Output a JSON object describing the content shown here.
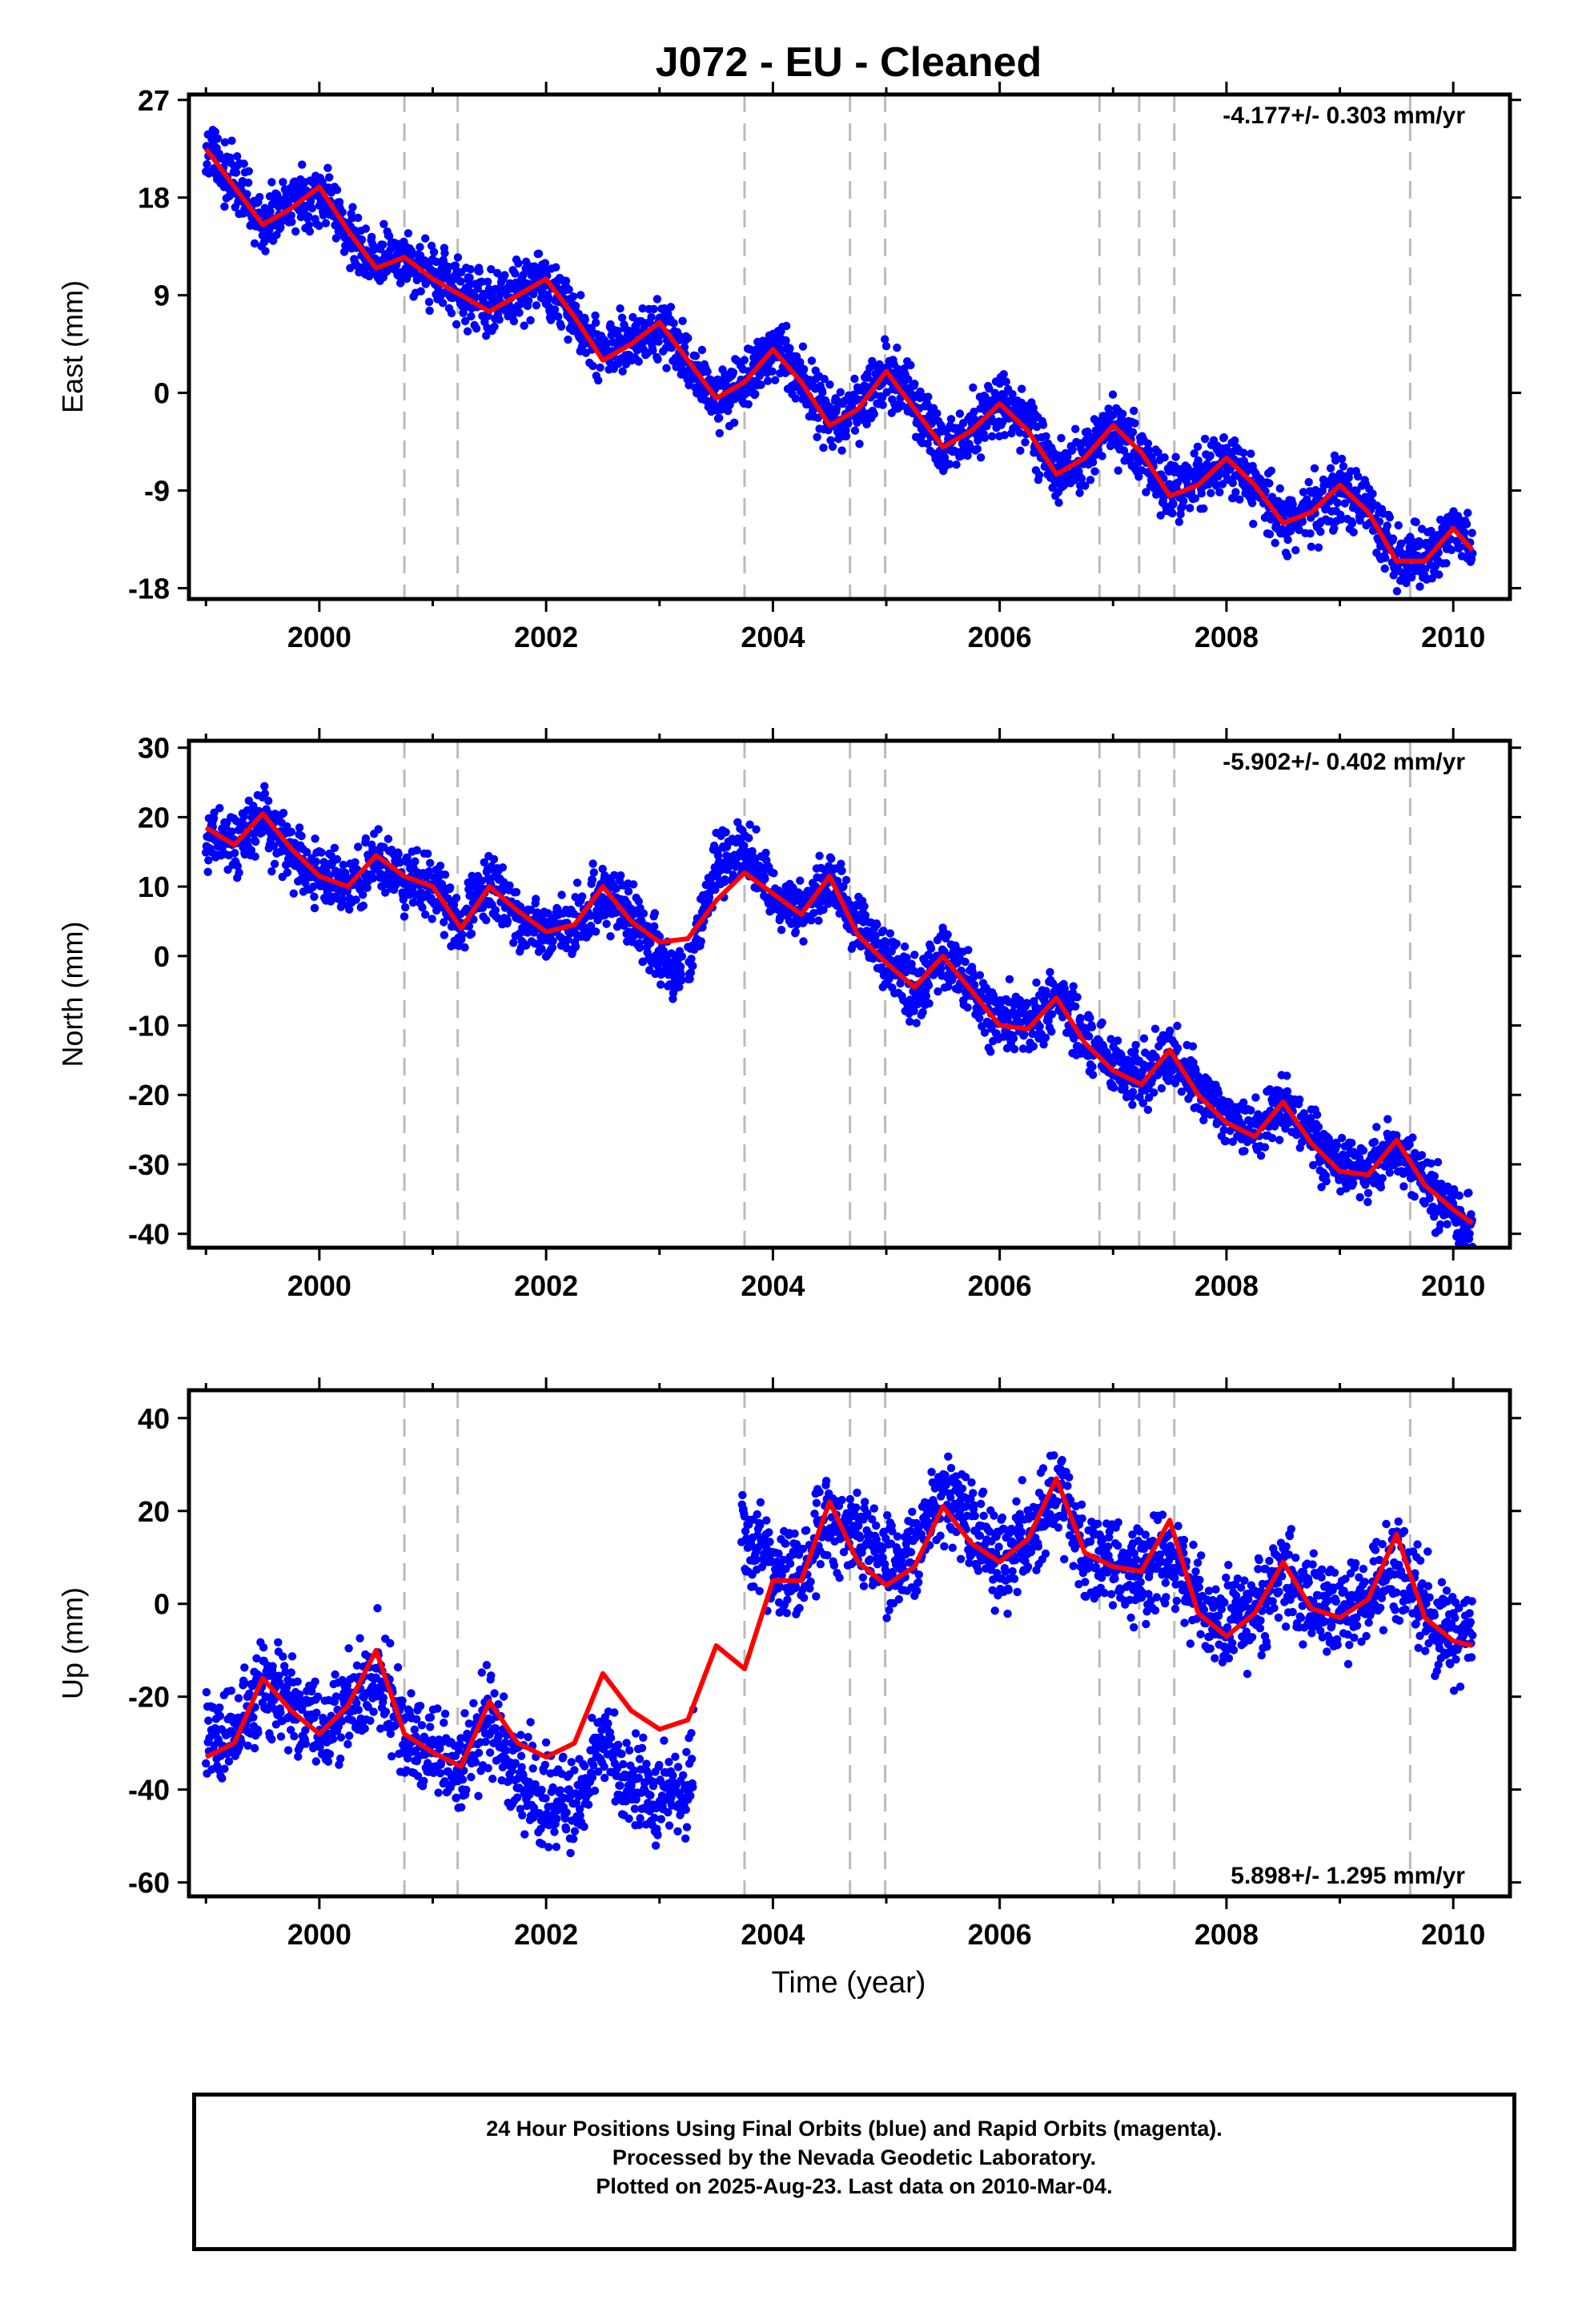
{
  "title": "J072  - EU - Cleaned",
  "xlabel": "Time (year)",
  "caption": [
    "24 Hour Positions Using Final Orbits (blue) and Rapid Orbits (magenta).",
    "Processed by the Nevada Geodetic Laboratory.",
    "Plotted on 2025-Aug-23. Last data on 2010-Mar-04."
  ],
  "colors": {
    "observations": "#0000ff",
    "model": "#ff0000",
    "event_lines": "#bbbbbb",
    "frame": "#000000"
  },
  "chart_data": [
    {
      "type": "scatter",
      "ylabel": "East (mm)",
      "rate_label": "-4.177+/- 0.303 mm/yr",
      "rate_position": "top-right",
      "xlim": [
        1998.85,
        2010.5
      ],
      "ylim": [
        -19,
        27.5
      ],
      "xticks": [
        2000,
        2002,
        2004,
        2006,
        2008,
        2010
      ],
      "yticks": [
        27,
        18,
        9,
        0,
        -9,
        -18
      ],
      "grid": false,
      "events": [
        2000.75,
        2001.22,
        2003.75,
        2004.68,
        2004.99,
        2006.88,
        2007.23,
        2007.54,
        2009.62
      ],
      "series": [
        {
          "kind": "observations",
          "x": [
            1999.0,
            1999.25,
            1999.5,
            1999.75,
            2000.0,
            2000.25,
            2000.5,
            2000.75,
            2001.0,
            2001.25,
            2001.5,
            2001.75,
            2002.0,
            2002.25,
            2002.5,
            2002.75,
            2003.0,
            2003.25,
            2003.5,
            2003.75,
            2004.0,
            2004.25,
            2004.5,
            2004.75,
            2005.0,
            2005.25,
            2005.5,
            2005.75,
            2006.0,
            2006.25,
            2006.5,
            2006.75,
            2007.0,
            2007.25,
            2007.5,
            2007.75,
            2008.0,
            2008.25,
            2008.5,
            2008.75,
            2009.0,
            2009.25,
            2009.5,
            2009.75,
            2010.0,
            2010.17
          ],
          "y": [
            22.5,
            19.5,
            15.5,
            17.5,
            18.5,
            15.0,
            12.0,
            12.5,
            10.5,
            9.5,
            8.0,
            9.5,
            10.0,
            7.0,
            3.5,
            4.5,
            6.0,
            3.0,
            -0.5,
            1.0,
            4.0,
            1.5,
            -2.5,
            -1.5,
            2.0,
            -1.0,
            -5.0,
            -3.5,
            -1.0,
            -3.0,
            -7.5,
            -6.0,
            -3.0,
            -5.5,
            -9.0,
            -8.0,
            -6.0,
            -8.5,
            -12.0,
            -11.0,
            -9.0,
            -11.0,
            -15.0,
            -15.5,
            -12.5,
            -14.5
          ]
        },
        {
          "kind": "model",
          "x": [
            1999.0,
            1999.25,
            1999.5,
            1999.75,
            2000.0,
            2000.25,
            2000.5,
            2000.75,
            2001.0,
            2001.25,
            2001.5,
            2001.75,
            2002.0,
            2002.25,
            2002.5,
            2002.75,
            2003.0,
            2003.25,
            2003.5,
            2003.75,
            2004.0,
            2004.25,
            2004.5,
            2004.75,
            2005.0,
            2005.25,
            2005.5,
            2005.75,
            2006.0,
            2006.25,
            2006.5,
            2006.75,
            2007.0,
            2007.25,
            2007.5,
            2007.75,
            2008.0,
            2008.25,
            2008.5,
            2008.75,
            2009.0,
            2009.25,
            2009.5,
            2009.75,
            2010.0,
            2010.17
          ],
          "y": [
            22.5,
            19.0,
            15.5,
            17.0,
            19.0,
            15.0,
            11.5,
            12.5,
            10.5,
            9.0,
            7.5,
            9.0,
            10.5,
            7.0,
            3.0,
            4.5,
            6.5,
            3.0,
            -0.5,
            1.0,
            4.0,
            1.0,
            -3.0,
            -1.5,
            2.0,
            -1.5,
            -5.0,
            -3.5,
            -1.0,
            -3.5,
            -7.5,
            -6.0,
            -3.0,
            -5.5,
            -9.5,
            -8.5,
            -6.0,
            -8.5,
            -12.0,
            -11.0,
            -8.5,
            -11.0,
            -15.5,
            -15.5,
            -12.5,
            -14.5
          ]
        }
      ]
    },
    {
      "type": "scatter",
      "ylabel": "North (mm)",
      "rate_label": "-5.902+/- 0.402 mm/yr",
      "rate_position": "top-right",
      "xlim": [
        1998.85,
        2010.5
      ],
      "ylim": [
        -42,
        31
      ],
      "xticks": [
        2000,
        2002,
        2004,
        2006,
        2008,
        2010
      ],
      "yticks": [
        30,
        20,
        10,
        0,
        -10,
        -20,
        -30,
        -40
      ],
      "grid": false,
      "events": [
        2000.75,
        2001.22,
        2003.75,
        2004.68,
        2004.99,
        2006.88,
        2007.23,
        2007.54,
        2009.62
      ],
      "series": [
        {
          "kind": "observations",
          "x": [
            1999.0,
            1999.25,
            1999.5,
            1999.75,
            2000.0,
            2000.25,
            2000.5,
            2000.75,
            2001.0,
            2001.25,
            2001.5,
            2001.75,
            2002.0,
            2002.25,
            2002.5,
            2002.75,
            2003.0,
            2003.25,
            2003.5,
            2003.75,
            2004.0,
            2004.25,
            2004.5,
            2004.75,
            2005.0,
            2005.25,
            2005.5,
            2005.75,
            2006.0,
            2006.25,
            2006.5,
            2006.75,
            2007.0,
            2007.25,
            2007.5,
            2007.75,
            2008.0,
            2008.25,
            2008.5,
            2008.75,
            2009.0,
            2009.25,
            2009.5,
            2009.75,
            2010.0,
            2010.17
          ],
          "y": [
            18.0,
            16.0,
            20.0,
            15.0,
            11.5,
            10.0,
            14.0,
            11.0,
            10.0,
            5.0,
            10.0,
            6.0,
            3.0,
            4.0,
            9.0,
            6.0,
            0.0,
            -3.0,
            13.0,
            15.0,
            9.0,
            6.0,
            11.0,
            4.0,
            0.0,
            -5.0,
            0.0,
            -5.0,
            -9.0,
            -10.0,
            -6.0,
            -12.0,
            -16.0,
            -18.0,
            -14.0,
            -19.0,
            -23.0,
            -25.0,
            -21.0,
            -26.0,
            -30.0,
            -31.0,
            -27.0,
            -33.0,
            -37.0,
            -39.0
          ]
        },
        {
          "kind": "model",
          "x": [
            1999.0,
            1999.25,
            1999.5,
            1999.75,
            2000.0,
            2000.25,
            2000.5,
            2000.75,
            2001.0,
            2001.25,
            2001.5,
            2001.75,
            2002.0,
            2002.25,
            2002.5,
            2002.75,
            2003.0,
            2003.25,
            2003.5,
            2003.75,
            2004.0,
            2004.25,
            2004.5,
            2004.75,
            2005.0,
            2005.25,
            2005.5,
            2005.75,
            2006.0,
            2006.25,
            2006.5,
            2006.75,
            2007.0,
            2007.25,
            2007.5,
            2007.75,
            2008.0,
            2008.25,
            2008.5,
            2008.75,
            2009.0,
            2009.25,
            2009.5,
            2009.75,
            2010.0,
            2010.17
          ],
          "y": [
            18.5,
            16.0,
            20.5,
            15.5,
            11.5,
            10.0,
            14.5,
            11.5,
            10.0,
            4.0,
            10.0,
            6.5,
            3.5,
            4.5,
            10.0,
            5.0,
            2.0,
            2.5,
            8.0,
            12.0,
            9.0,
            6.0,
            11.5,
            3.0,
            -1.0,
            -4.5,
            0.0,
            -5.0,
            -10.0,
            -10.5,
            -6.0,
            -12.5,
            -16.5,
            -18.5,
            -13.5,
            -20.0,
            -24.0,
            -26.0,
            -21.0,
            -27.0,
            -31.0,
            -31.5,
            -26.5,
            -33.0,
            -36.5,
            -38.5
          ]
        }
      ]
    },
    {
      "type": "scatter",
      "ylabel": "Up (mm)",
      "rate_label": "5.898+/- 1.295 mm/yr",
      "rate_position": "bottom-right",
      "xlim": [
        1998.85,
        2010.5
      ],
      "ylim": [
        -63,
        46
      ],
      "xticks": [
        2000,
        2002,
        2004,
        2006,
        2008,
        2010
      ],
      "yticks": [
        40,
        20,
        0,
        -20,
        -40,
        -60
      ],
      "grid": false,
      "events": [
        2000.75,
        2001.22,
        2003.75,
        2004.68,
        2004.99,
        2006.88,
        2007.23,
        2007.54,
        2009.62
      ],
      "series": [
        {
          "kind": "observations",
          "x": [
            1999.0,
            1999.25,
            1999.5,
            1999.75,
            2000.0,
            2000.25,
            2000.5,
            2000.75,
            2001.0,
            2001.25,
            2001.5,
            2001.75,
            2002.0,
            2002.25,
            2002.5,
            2002.75,
            2003.0,
            2003.25,
            2003.5,
            2003.75,
            2004.0,
            2004.25,
            2004.5,
            2004.75,
            2005.0,
            2005.25,
            2005.5,
            2005.75,
            2006.0,
            2006.25,
            2006.5,
            2006.75,
            2007.0,
            2007.25,
            2007.5,
            2007.75,
            2008.0,
            2008.25,
            2008.5,
            2008.75,
            2009.0,
            2009.25,
            2009.5,
            2009.75,
            2010.0,
            2010.17
          ],
          "y": [
            -28.0,
            -30.0,
            -18.0,
            -22.0,
            -28.0,
            -22.0,
            -13.0,
            -27.0,
            -33.0,
            -36.0,
            -25.0,
            -35.0,
            -42.0,
            -44.0,
            -30.0,
            -40.0,
            -42.0,
            -40.0,
            18.0,
            16.0,
            6.0,
            8.0,
            20.0,
            14.0,
            8.0,
            10.0,
            25.0,
            16.0,
            10.0,
            15.0,
            24.0,
            12.0,
            8.0,
            6.0,
            10.0,
            0.0,
            -4.0,
            -2.0,
            8.0,
            0.0,
            -2.0,
            0.0,
            10.0,
            -2.0,
            -8.0,
            -8.0
          ]
        },
        {
          "kind": "model",
          "x": [
            1999.0,
            1999.25,
            1999.5,
            1999.75,
            2000.0,
            2000.25,
            2000.5,
            2000.75,
            2001.0,
            2001.25,
            2001.5,
            2001.75,
            2002.0,
            2002.25,
            2002.5,
            2002.75,
            2003.0,
            2003.25,
            2003.5,
            2003.75,
            2004.0,
            2004.25,
            2004.5,
            2004.75,
            2005.0,
            2005.25,
            2005.5,
            2005.75,
            2006.0,
            2006.25,
            2006.5,
            2006.75,
            2007.0,
            2007.25,
            2007.5,
            2007.75,
            2008.0,
            2008.25,
            2008.5,
            2008.75,
            2009.0,
            2009.25,
            2009.5,
            2009.75,
            2010.0,
            2010.17
          ],
          "y": [
            -33.0,
            -30.0,
            -16.0,
            -23.0,
            -28.0,
            -22.0,
            -10.0,
            -28.0,
            -32.0,
            -35.0,
            -21.0,
            -30.0,
            -33.0,
            -30.0,
            -15.0,
            -23.0,
            -27.0,
            -25.0,
            -9.0,
            -14.0,
            5.0,
            5.0,
            22.0,
            9.0,
            4.0,
            8.0,
            21.0,
            13.0,
            9.0,
            14.0,
            27.0,
            11.0,
            8.0,
            7.0,
            18.0,
            -2.0,
            -7.0,
            -2.0,
            9.0,
            -1.0,
            -3.0,
            1.0,
            15.0,
            -3.0,
            -8.0,
            -9.0
          ]
        }
      ]
    }
  ]
}
